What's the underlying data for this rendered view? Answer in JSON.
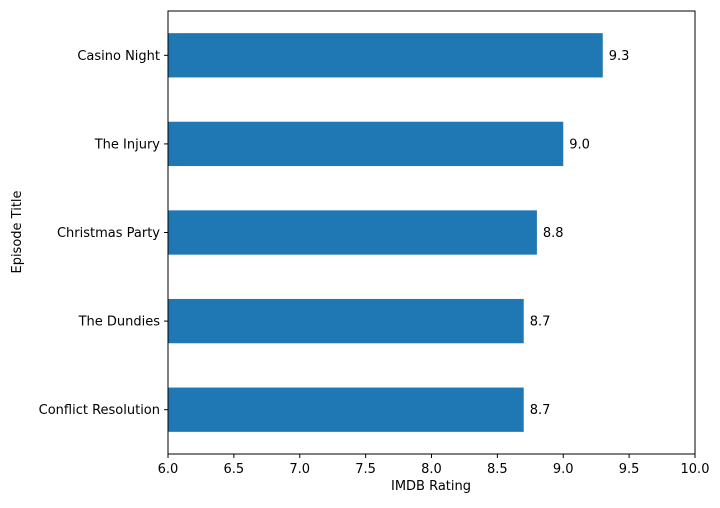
{
  "chart_data": {
    "type": "bar",
    "orientation": "horizontal",
    "categories": [
      "Casino Night",
      "The Injury",
      "Christmas Party",
      "The Dundies",
      "Conflict Resolution"
    ],
    "values": [
      9.3,
      9.0,
      8.8,
      8.7,
      8.7
    ],
    "value_labels": [
      "9.3",
      "9.0",
      "8.8",
      "8.7",
      "8.7"
    ],
    "xlabel": "IMDB Rating",
    "ylabel": "Episode Title",
    "xlim": [
      6.0,
      10.0
    ],
    "xticks": [
      6.0,
      6.5,
      7.0,
      7.5,
      8.0,
      8.5,
      9.0,
      9.5,
      10.0
    ],
    "xtick_labels": [
      "6.0",
      "6.5",
      "7.0",
      "7.5",
      "8.0",
      "8.5",
      "9.0",
      "9.5",
      "10.0"
    ],
    "bar_color": "#1f77b4",
    "grid": false,
    "legend": "none"
  }
}
